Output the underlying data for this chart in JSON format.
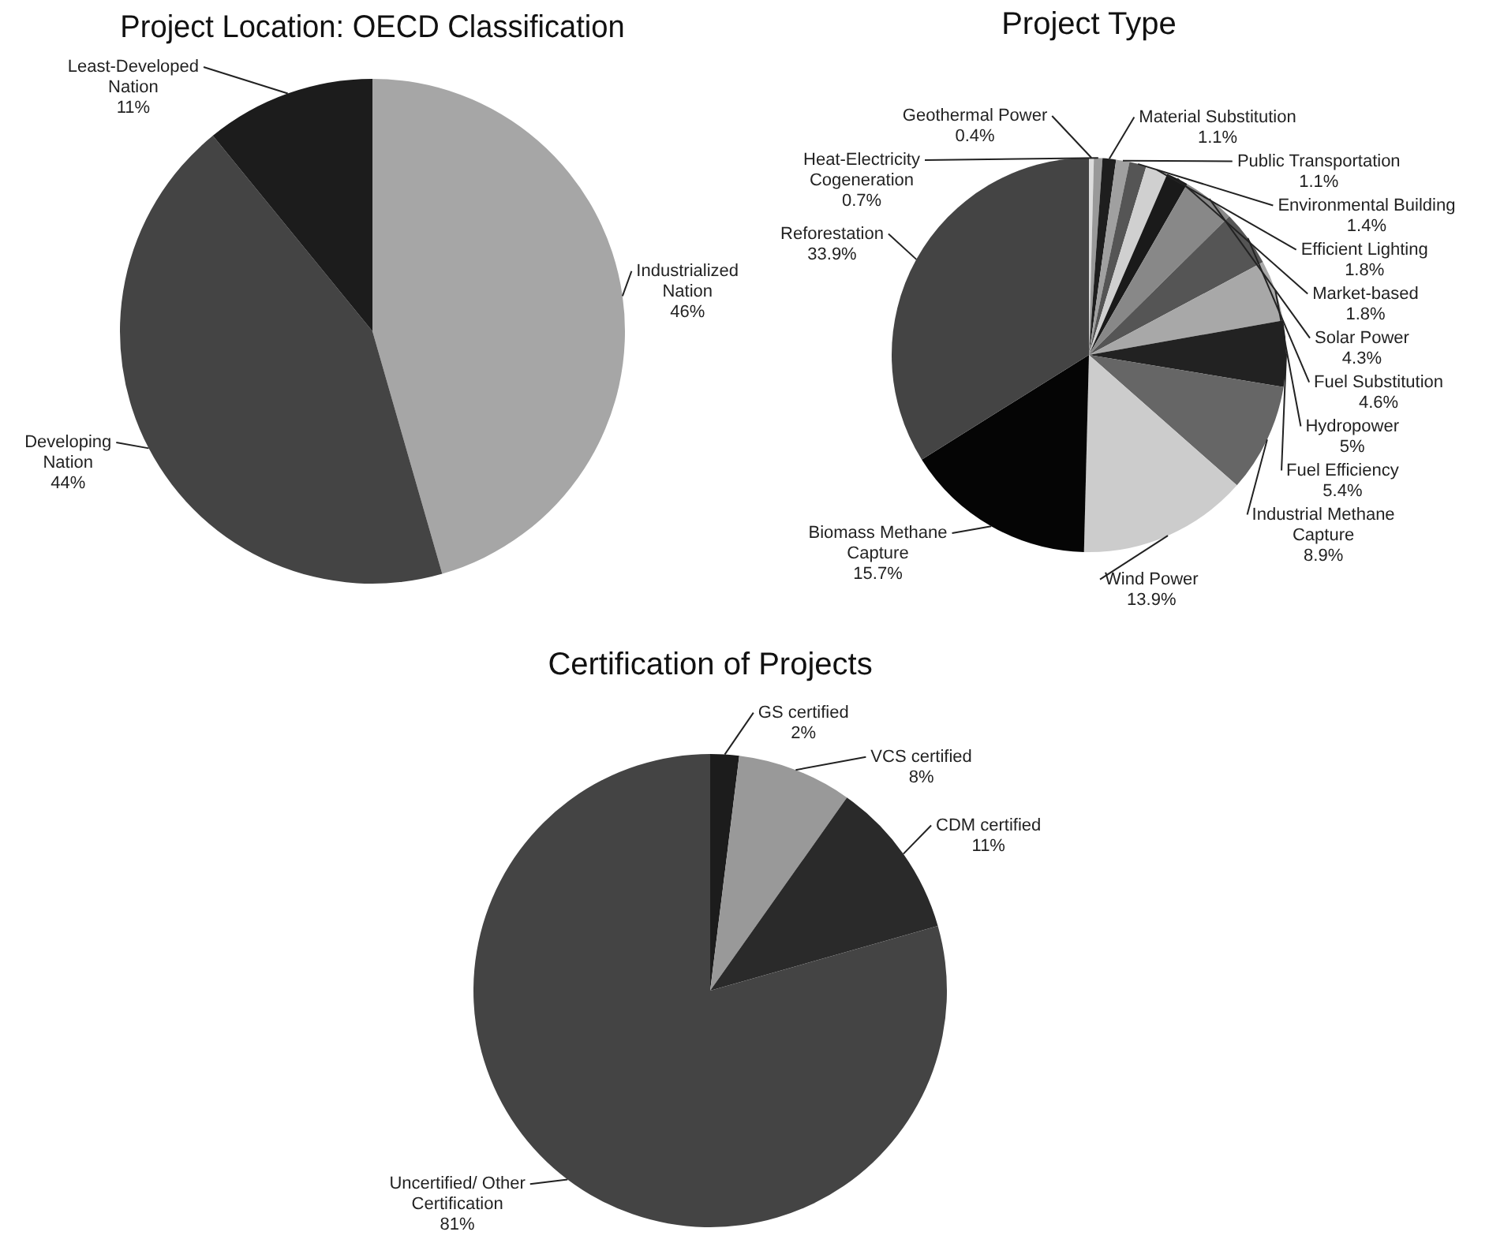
{
  "chart_data": [
    {
      "type": "pie",
      "title": "Project Location: OECD Classification",
      "categories": [
        "Industrialized Nation",
        "Developing Nation",
        "Least-Developed Nation"
      ],
      "values": [
        46,
        44,
        11
      ],
      "value_labels": [
        "46%",
        "44%",
        "11%"
      ],
      "colors": [
        "#a6a6a6",
        "#444444",
        "#1c1c1c"
      ]
    },
    {
      "type": "pie",
      "title": "Project Type",
      "categories": [
        "Geothermal Power",
        "Heat-Electricity Cogeneration",
        "Material Substitution",
        "Public Transportation",
        "Environmental Building",
        "Efficient Lighting",
        "Market-based",
        "Solar Power",
        "Fuel Substitution",
        "Hydropower",
        "Fuel Efficiency",
        "Industrial Methane Capture",
        "Wind Power",
        "Biomass Methane Capture",
        "Reforestation"
      ],
      "values": [
        0.4,
        0.7,
        1.1,
        1.1,
        1.4,
        1.8,
        1.8,
        4.3,
        4.6,
        5,
        5.4,
        8.9,
        13.9,
        15.7,
        33.9
      ],
      "value_labels": [
        "0.4%",
        "0.7%",
        "1.1%",
        "1.1%",
        "1.4%",
        "1.8%",
        "1.8%",
        "4.3%",
        "4.6%",
        "5%",
        "5.4%",
        "8.9%",
        "13.9%",
        "15.7%",
        "33.9%"
      ],
      "colors": [
        "#dddddd",
        "#999999",
        "#1e1e1e",
        "#a0a0a0",
        "#555555",
        "#d0d0d0",
        "#1a1a1a",
        "#888888",
        "#555555",
        "#a8a8a8",
        "#222222",
        "#666666",
        "#cccccc",
        "#050505",
        "#444444"
      ]
    },
    {
      "type": "pie",
      "title": "Certification of Projects",
      "categories": [
        "GS certified",
        "VCS certified",
        "CDM certified",
        "Uncertified/ Other Certification"
      ],
      "values": [
        2,
        8,
        11,
        81
      ],
      "value_labels": [
        "2%",
        "8%",
        "11%",
        "81%"
      ],
      "colors": [
        "#1c1c1c",
        "#999999",
        "#2a2a2a",
        "#444444"
      ]
    }
  ]
}
